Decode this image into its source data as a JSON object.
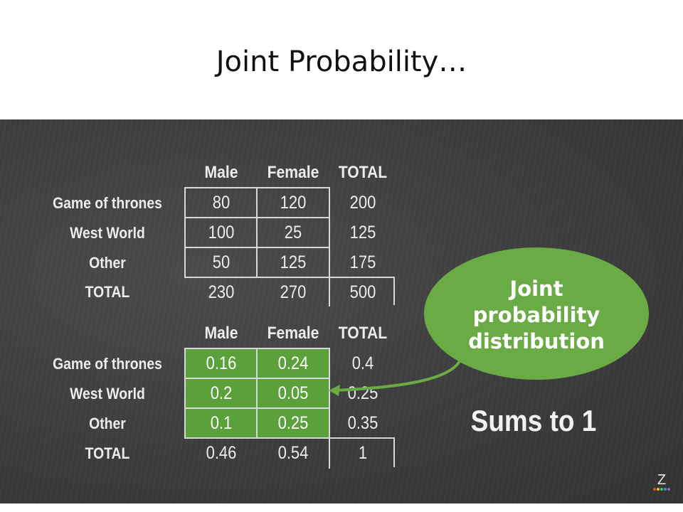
{
  "title": "Joint Probability…",
  "table1": {
    "col_headers": [
      "Male",
      "Female",
      "TOTAL"
    ],
    "rows": [
      {
        "label": "Game of thrones",
        "cells": [
          "80",
          "120",
          "200"
        ]
      },
      {
        "label": "West World",
        "cells": [
          "100",
          "25",
          "125"
        ]
      },
      {
        "label": "Other",
        "cells": [
          "50",
          "125",
          "175"
        ]
      },
      {
        "label": "TOTAL",
        "cells": [
          "230",
          "270",
          "500"
        ]
      }
    ]
  },
  "table2": {
    "col_headers": [
      "Male",
      "Female",
      "TOTAL"
    ],
    "rows": [
      {
        "label": "Game of thrones",
        "cells": [
          "0.16",
          "0.24",
          "0.4"
        ]
      },
      {
        "label": "West World",
        "cells": [
          "0.2",
          "0.05",
          "0.25"
        ]
      },
      {
        "label": "Other",
        "cells": [
          "0.1",
          "0.25",
          "0.35"
        ]
      },
      {
        "label": "TOTAL",
        "cells": [
          "0.46",
          "0.54",
          "1"
        ]
      }
    ]
  },
  "callout": {
    "line1": "Joint",
    "line2": "probability",
    "line3": "distribution"
  },
  "sums_text": "Sums to 1",
  "logo": "Z",
  "colors": {
    "board": "#3f3f3f",
    "highlight": "#5aa13b",
    "bubble": "#6aab46",
    "text": "#ececec"
  }
}
